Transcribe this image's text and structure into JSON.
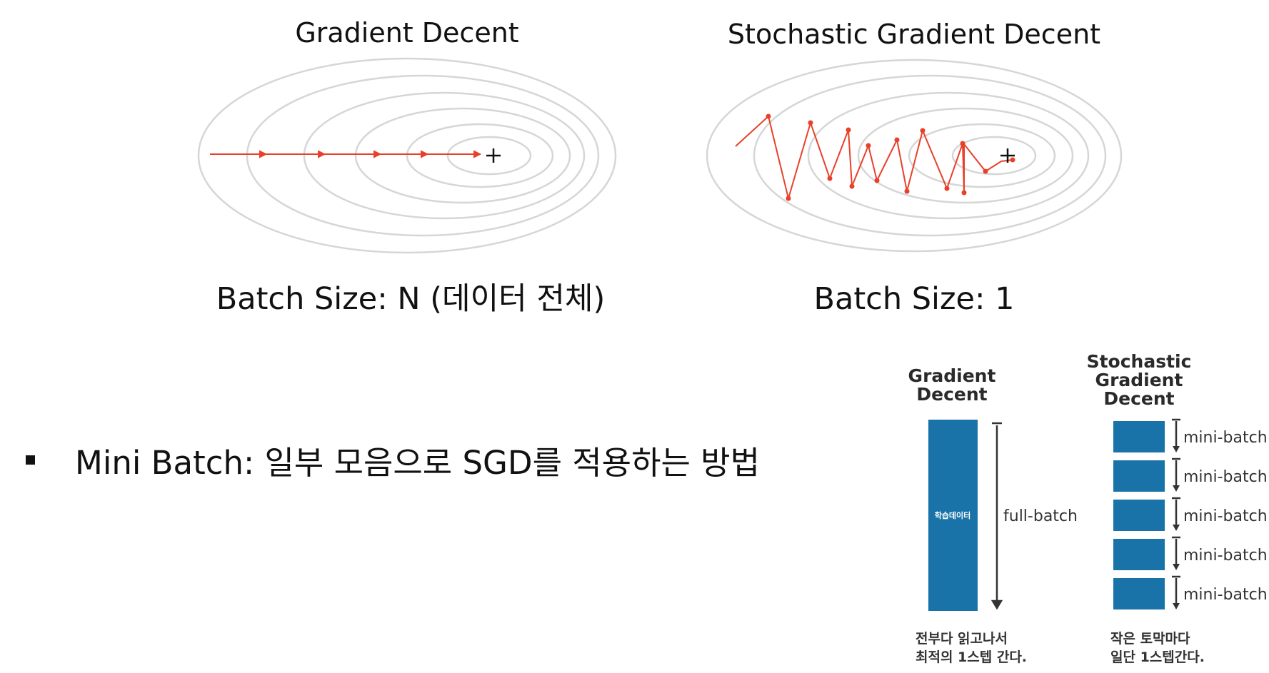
{
  "gd_panel": {
    "title": "Gradient Decent",
    "caption": "Batch Size: N (데이터 전체)"
  },
  "sgd_panel": {
    "title": "Stochastic Gradient Decent",
    "caption": "Batch Size: 1"
  },
  "bullet": {
    "text": "Mini Batch: 일부 모음으로 SGD를 적용하는 방법"
  },
  "batch_diagram": {
    "gd_heading_line1": "Gradient",
    "gd_heading_line2": "Decent",
    "sgd_heading_line1": "Stochastic",
    "sgd_heading_line2": "Gradient",
    "sgd_heading_line3": "Decent",
    "data_block_label": "학습데이터",
    "full_batch_label": "full-batch",
    "mini_batch_labels": [
      "mini-batch",
      "mini-batch",
      "mini-batch",
      "mini-batch",
      "mini-batch"
    ],
    "gd_note_line1": "전부다 읽고나서",
    "gd_note_line2": "최적의 1스텝 간다.",
    "sgd_note_line1": "작은 토막마다",
    "sgd_note_line2": "일단 1스텝간다.",
    "block_color": "#1a73a8"
  },
  "colors": {
    "contour": "#d6d6d6",
    "path": "#e8402a",
    "text": "#111111"
  }
}
